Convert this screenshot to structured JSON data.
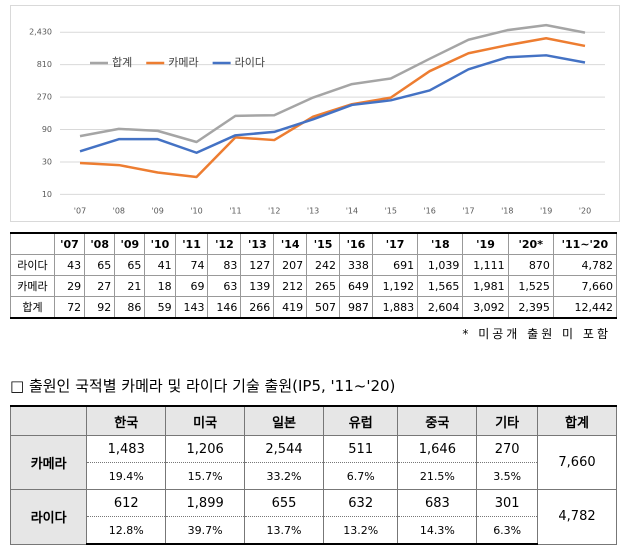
{
  "chart_data": {
    "type": "line",
    "categories": [
      "'07",
      "'08",
      "'09",
      "'10",
      "'11",
      "'12",
      "'13",
      "'14",
      "'15",
      "'16",
      "'17",
      "'18",
      "'19",
      "'20"
    ],
    "series": [
      {
        "name": "합계",
        "color": "#a5a5a5",
        "values": [
          72,
          92,
          86,
          59,
          143,
          146,
          266,
          419,
          507,
          987,
          1883,
          2604,
          3092,
          2395
        ]
      },
      {
        "name": "카메라",
        "color": "#ed7d31",
        "values": [
          29,
          27,
          21,
          18,
          69,
          63,
          139,
          212,
          265,
          649,
          1192,
          1565,
          1981,
          1525
        ]
      },
      {
        "name": "라이다",
        "color": "#4472c4",
        "values": [
          43,
          65,
          65,
          41,
          74,
          83,
          127,
          207,
          242,
          338,
          691,
          1039,
          1111,
          870
        ]
      }
    ],
    "log_scale": true,
    "ylim": [
      8,
      3800
    ],
    "yticks": [
      10,
      30,
      90,
      270,
      810,
      {
        "value": 2430,
        "label": "2,430"
      }
    ],
    "grid": true,
    "legend": "upper left"
  },
  "yearly_table": {
    "header": [
      "'07",
      "'08",
      "'09",
      "'10",
      "'11",
      "'12",
      "'13",
      "'14",
      "'15",
      "'16",
      "'17",
      "'18",
      "'19",
      "'20*",
      "'11~'20"
    ],
    "rows": [
      [
        "라이다",
        "43",
        "65",
        "65",
        "41",
        "74",
        "83",
        "127",
        "207",
        "242",
        "338",
        "691",
        "1,039",
        "1,111",
        "870",
        "4,782"
      ],
      [
        "카메라",
        "29",
        "27",
        "21",
        "18",
        "69",
        "63",
        "139",
        "212",
        "265",
        "649",
        "1,192",
        "1,565",
        "1,981",
        "1,525",
        "7,660"
      ],
      [
        "합계",
        "72",
        "92",
        "86",
        "59",
        "143",
        "146",
        "266",
        "419",
        "507",
        "987",
        "1,883",
        "2,604",
        "3,092",
        "2,395",
        "12,442"
      ]
    ],
    "footnote": "* 미공개 출원 미 포함"
  },
  "section_title": "□ 출원인 국적별 카메라 및 라이다 기술 출원(IP5, '11~'20)",
  "country_table": {
    "header": [
      "한국",
      "미국",
      "일본",
      "유럽",
      "중국",
      "기타",
      "합계"
    ],
    "rows": [
      {
        "label": "카메라",
        "counts": [
          "1,483",
          "1,206",
          "2,544",
          "511",
          "1,646",
          "270"
        ],
        "shares": [
          "19.4%",
          "15.7%",
          "33.2%",
          "6.7%",
          "21.5%",
          "3.5%"
        ],
        "total": "7,660"
      },
      {
        "label": "라이다",
        "counts": [
          "612",
          "1,899",
          "655",
          "632",
          "683",
          "301"
        ],
        "shares": [
          "12.8%",
          "39.7%",
          "13.7%",
          "13.2%",
          "14.3%",
          "6.3%"
        ],
        "total": "4,782"
      }
    ]
  }
}
